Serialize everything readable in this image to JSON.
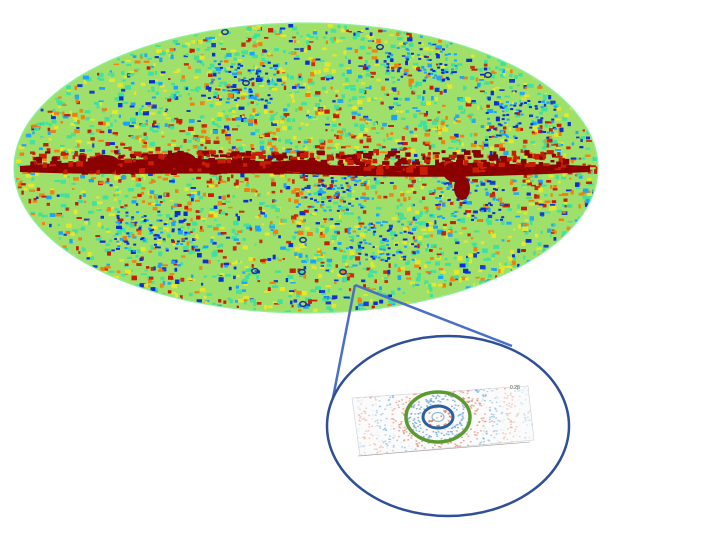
{
  "figure": {
    "description_visible_text": "",
    "map": {
      "projection_icon": "mollweide-sky-map",
      "colors": {
        "low": "#0a2fd6",
        "low_mid": "#18a3ff",
        "mid": "#3fe0a0",
        "mid_high": "#e8e82a",
        "high": "#f08010",
        "very_high": "#c81e06",
        "saturated": "#8b0000",
        "source_ring": "#1a2a8a"
      }
    },
    "zoom": {
      "connector_color": "#4a6fc7",
      "circle_color": "#2f4f96",
      "ring_outer_color": "#5a9a30",
      "ring_inner_color": "#2c5fa0",
      "corner_label": "0.2β"
    }
  }
}
